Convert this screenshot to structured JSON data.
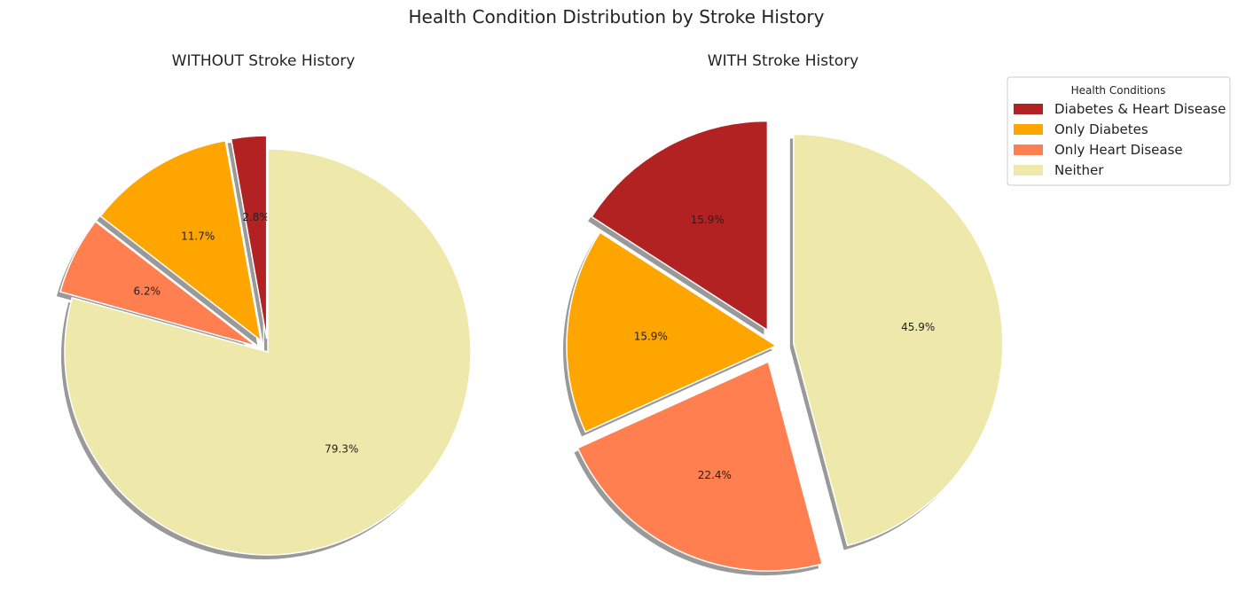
{
  "title": "Health Condition Distribution by Stroke History",
  "legend": {
    "title": "Health Conditions",
    "placement": "upper-right",
    "entries": [
      "Diabetes & Heart Disease",
      "Only Diabetes",
      "Only Heart Disease",
      "Neither"
    ]
  },
  "colors": [
    "#b22222",
    "#ffa500",
    "#ff7f50",
    "#eee8aa"
  ],
  "chart_data": [
    {
      "type": "pie",
      "title": "WITHOUT Stroke History",
      "categories": [
        "Diabetes & Heart Disease",
        "Only Diabetes",
        "Only Heart Disease",
        "Neither"
      ],
      "values": [
        2.8,
        11.7,
        6.2,
        79.3
      ],
      "labels": [
        "2.8%",
        "11.7%",
        "6.2%",
        "79.3%"
      ],
      "exploded": [
        true,
        true,
        true,
        false
      ],
      "start_angle": 90,
      "shadow": true
    },
    {
      "type": "pie",
      "title": "WITH Stroke History",
      "categories": [
        "Diabetes & Heart Disease",
        "Only Diabetes",
        "Only Heart Disease",
        "Neither"
      ],
      "values": [
        15.9,
        15.9,
        22.4,
        45.9
      ],
      "labels": [
        "15.9%",
        "15.9%",
        "22.4%",
        "45.9%"
      ],
      "exploded": [
        true,
        false,
        true,
        true
      ],
      "start_angle": 90,
      "shadow": true
    }
  ]
}
